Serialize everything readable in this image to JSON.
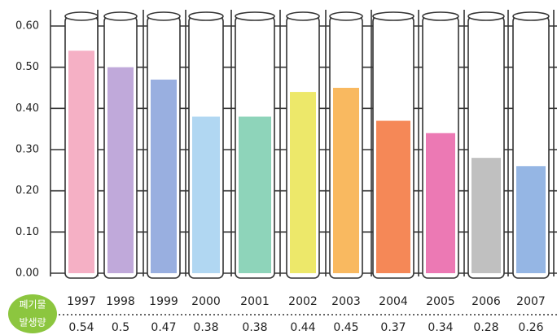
{
  "chart_data": {
    "type": "bar",
    "categories": [
      "1997",
      "1998",
      "1999",
      "2000",
      "2001",
      "2002",
      "2003",
      "2004",
      "2005",
      "2006",
      "2007"
    ],
    "values": [
      0.54,
      0.5,
      0.47,
      0.38,
      0.38,
      0.44,
      0.45,
      0.37,
      0.34,
      0.28,
      0.26
    ],
    "colors": [
      "#f4a7bf",
      "#b9a0d6",
      "#8ea6dd",
      "#a8d3f1",
      "#82cfb2",
      "#ebe65a",
      "#f8b14f",
      "#f47b45",
      "#ea6aac",
      "#b9b9b9",
      "#8aaee1"
    ],
    "row_label": [
      "폐기물",
      "발생량"
    ],
    "ylim": [
      0,
      0.6
    ],
    "yticks": [
      {
        "value": 0,
        "label": "0.00"
      },
      {
        "value": 0.1,
        "label": "0.10"
      },
      {
        "value": 0.2,
        "label": "0.20"
      },
      {
        "value": 0.3,
        "label": "0.30"
      },
      {
        "value": 0.4,
        "label": "0.40"
      },
      {
        "value": 0.5,
        "label": "0.50"
      },
      {
        "value": 0.6,
        "label": "0.60"
      }
    ],
    "grid": true
  }
}
